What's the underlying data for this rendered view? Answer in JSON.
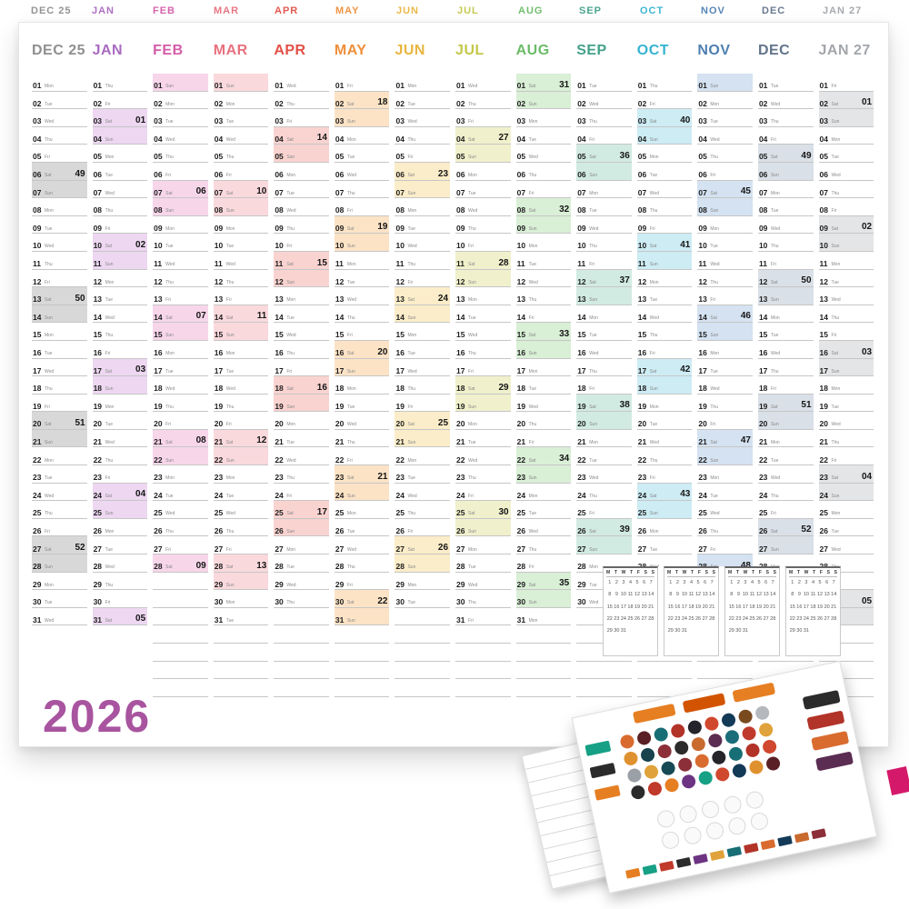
{
  "poster": {
    "year": "2026",
    "year_color": "#a8549f"
  },
  "weekday_labels": [
    "Mon",
    "Tue",
    "Wed",
    "Thu",
    "Fri",
    "Sat",
    "Sun"
  ],
  "months": [
    {
      "label": "DEC 25",
      "color": "#8f8f8f",
      "tint": "#d8d8d8",
      "days": 31,
      "start": 0,
      "weeks": {
        "6": "49",
        "13": "50",
        "20": "51",
        "27": "52"
      }
    },
    {
      "label": "JAN",
      "color": "#a86bbf",
      "tint": "#edd7f1",
      "days": 31,
      "start": 3,
      "weeks": {
        "3": "01",
        "10": "02",
        "17": "03",
        "24": "04",
        "31": "05"
      }
    },
    {
      "label": "FEB",
      "color": "#d45ba8",
      "tint": "#f7d6ea",
      "days": 28,
      "start": 6,
      "weeks": {
        "7": "06",
        "14": "07",
        "21": "08",
        "28": "09"
      }
    },
    {
      "label": "MAR",
      "color": "#e8707e",
      "tint": "#fad9dd",
      "days": 31,
      "start": 6,
      "weeks": {
        "7": "10",
        "14": "11",
        "21": "12",
        "28": "13"
      }
    },
    {
      "label": "APR",
      "color": "#e25046",
      "tint": "#f9d3d0",
      "days": 30,
      "start": 2,
      "weeks": {
        "4": "14",
        "11": "15",
        "18": "16",
        "25": "17"
      }
    },
    {
      "label": "MAY",
      "color": "#ef8f3a",
      "tint": "#fce3c6",
      "days": 31,
      "start": 4,
      "weeks": {
        "2": "18",
        "9": "19",
        "16": "20",
        "23": "21",
        "30": "22"
      }
    },
    {
      "label": "JUN",
      "color": "#e9b53f",
      "tint": "#fbedc9",
      "days": 30,
      "start": 0,
      "weeks": {
        "6": "23",
        "13": "24",
        "20": "25",
        "27": "26"
      }
    },
    {
      "label": "JUL",
      "color": "#c3c84a",
      "tint": "#f0f1cc",
      "days": 31,
      "start": 2,
      "weeks": {
        "4": "27",
        "11": "28",
        "18": "29",
        "25": "30"
      }
    },
    {
      "label": "AUG",
      "color": "#6bbb68",
      "tint": "#d9efd6",
      "days": 31,
      "start": 5,
      "weeks": {
        "1": "31",
        "8": "32",
        "15": "33",
        "22": "34",
        "29": "35"
      }
    },
    {
      "label": "SEP",
      "color": "#43a189",
      "tint": "#d2ebe2",
      "days": 30,
      "start": 1,
      "weeks": {
        "5": "36",
        "12": "37",
        "19": "38",
        "26": "39"
      }
    },
    {
      "label": "OCT",
      "color": "#35b3d1",
      "tint": "#cdecf4",
      "days": 31,
      "start": 3,
      "weeks": {
        "3": "40",
        "10": "41",
        "17": "42",
        "24": "43",
        "31": "44"
      }
    },
    {
      "label": "NOV",
      "color": "#4e7fb0",
      "tint": "#d4e2f1",
      "days": 30,
      "start": 6,
      "weeks": {
        "7": "45",
        "14": "46",
        "21": "47",
        "28": "48"
      }
    },
    {
      "label": "DEC",
      "color": "#62748a",
      "tint": "#dae0e7",
      "days": 31,
      "start": 1,
      "weeks": {
        "5": "49",
        "12": "50",
        "19": "51",
        "26": "52"
      }
    },
    {
      "label": "JAN 27",
      "color": "#a2a6aa",
      "tint": "#e4e5e7",
      "days": 31,
      "start": 4,
      "weeks": {
        "2": "01",
        "9": "02",
        "16": "03",
        "23": "04",
        "30": "05"
      }
    }
  ],
  "mini_calendars": {
    "count": 4,
    "weekday_initials": [
      "M",
      "T",
      "W",
      "T",
      "F",
      "S",
      "S"
    ],
    "days_in_month": 31
  },
  "sticker_sheet": {
    "top_labels": [
      "#e67e22",
      "#d35400",
      "#e67e22"
    ],
    "left_labels": [
      "#16a085",
      "#2b2b2b",
      "#e67e22"
    ],
    "right_labels": [
      "#2b2b2b",
      "#b23327",
      "#d96b2f",
      "#5b2d52"
    ],
    "dot_rows": [
      [
        "#d96b2f",
        "#5a1f24",
        "#186e75",
        "#b23327",
        "#24242a",
        "#d0482e",
        "#133a57",
        "#7a4a1f",
        "#b5b8bd"
      ],
      [
        "#e0912f",
        "#17424e",
        "#8c2f39",
        "#2b2b2b",
        "#c96a2f",
        "#5b2d52",
        "#1b6e79",
        "#c03a2b",
        "#e0a23a"
      ],
      [
        "#9aa0a6",
        "#e0a23a",
        "#174a54",
        "#8c2f39",
        "#d96b2f",
        "#24242a",
        "#186e75",
        "#b23327",
        "#d0482e"
      ],
      [
        "#2b2b2b",
        "#c0392b",
        "#e67e22",
        "#6c3483",
        "#16a085",
        "#d0482e",
        "#133a57",
        "#e0912f",
        "#5a1f24"
      ]
    ],
    "blank_circle_rows": 2,
    "blank_circles_per_row": 5,
    "bottom_strip": [
      "#e67e22",
      "#16a085",
      "#c0392b",
      "#2b2b2b",
      "#6c3483",
      "#e0a23a",
      "#186e75",
      "#b23327",
      "#d96b2f",
      "#133a57",
      "#c96a2f",
      "#8c2f39"
    ],
    "edge_mark_color": "#d5196a"
  }
}
